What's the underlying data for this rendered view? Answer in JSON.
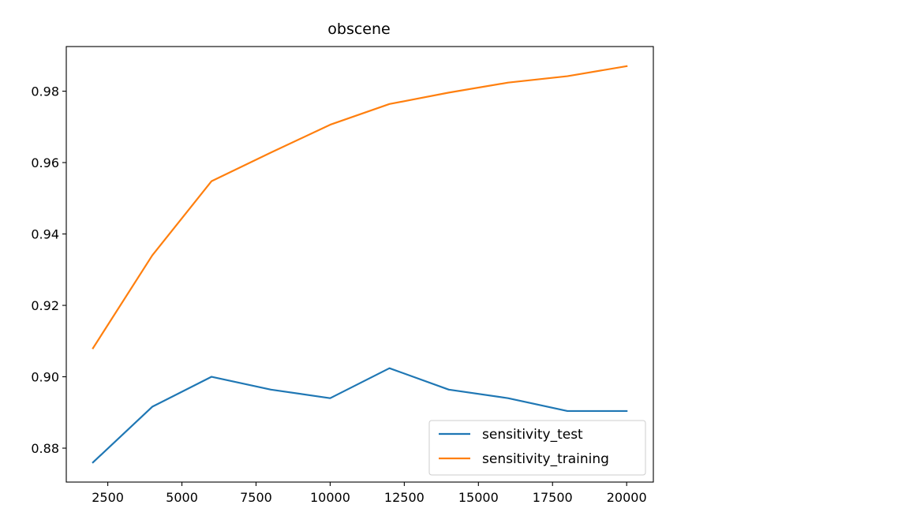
{
  "chart_data": {
    "type": "line",
    "title": "obscene",
    "xlabel": "",
    "ylabel": "",
    "x": [
      2000,
      4000,
      6000,
      8000,
      10000,
      12000,
      14000,
      16000,
      18000,
      20000
    ],
    "series": [
      {
        "name": "sensitivity_test",
        "color": "#1f77b4",
        "values": [
          0.876,
          0.8916,
          0.9,
          0.8964,
          0.894,
          0.9024,
          0.8964,
          0.894,
          0.8904,
          0.8904
        ]
      },
      {
        "name": "sensitivity_training",
        "color": "#ff7f0e",
        "values": [
          0.908,
          0.934,
          0.9548,
          0.9628,
          0.9706,
          0.9764,
          0.9796,
          0.9824,
          0.9842,
          0.987
        ]
      }
    ],
    "xlim": [
      1100,
      20900
    ],
    "ylim": [
      0.8705,
      0.9925
    ],
    "xticks": [
      2500,
      5000,
      7500,
      10000,
      12500,
      15000,
      17500,
      20000
    ],
    "yticks": [
      0.88,
      0.9,
      0.92,
      0.94,
      0.96,
      0.98
    ],
    "xtick_labels": [
      "2500",
      "5000",
      "7500",
      "10000",
      "12500",
      "15000",
      "17500",
      "20000"
    ],
    "ytick_labels": [
      "0.88",
      "0.90",
      "0.92",
      "0.94",
      "0.96",
      "0.98"
    ],
    "grid": false,
    "legend_position": "lower-right"
  }
}
